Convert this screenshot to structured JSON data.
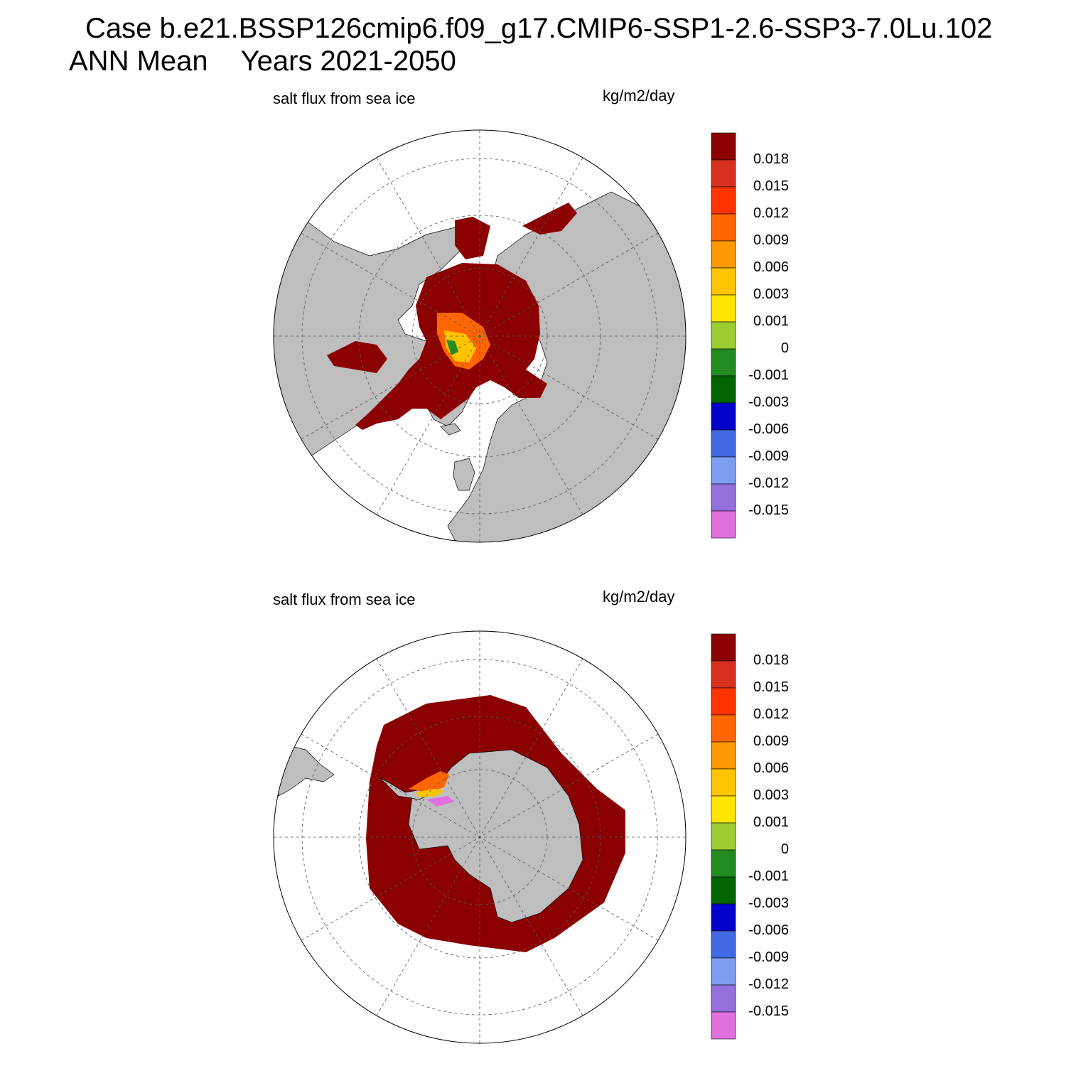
{
  "title": {
    "line1": "Case b.e21.BSSP126cmip6.f09_g17.CMIP6-SSP1-2.6-SSP3-7.0Lu.102",
    "season": "ANN Mean",
    "years": "Years 2021-2050"
  },
  "panels": [
    {
      "hemisphere": "north",
      "variable": "salt flux from sea ice",
      "units": "kg/m2/day"
    },
    {
      "hemisphere": "south",
      "variable": "salt flux from sea ice",
      "units": "kg/m2/day"
    }
  ],
  "colorbar": {
    "levels": [
      "0.018",
      "0.015",
      "0.012",
      "0.009",
      "0.006",
      "0.003",
      "0.001",
      "0",
      "-0.001",
      "-0.003",
      "-0.006",
      "-0.009",
      "-0.012",
      "-0.015"
    ],
    "colors": [
      "#8b0000",
      "#d7301f",
      "#ff3300",
      "#ff6600",
      "#ff9900",
      "#ffc400",
      "#ffe500",
      "#9acd32",
      "#228b22",
      "#006400",
      "#0000cd",
      "#4169e1",
      "#7b9ef0",
      "#9370db",
      "#e070e0"
    ]
  },
  "colors": {
    "land": "#bebebe",
    "ice_flux_high": "#8b0000",
    "grid": "#555555"
  }
}
